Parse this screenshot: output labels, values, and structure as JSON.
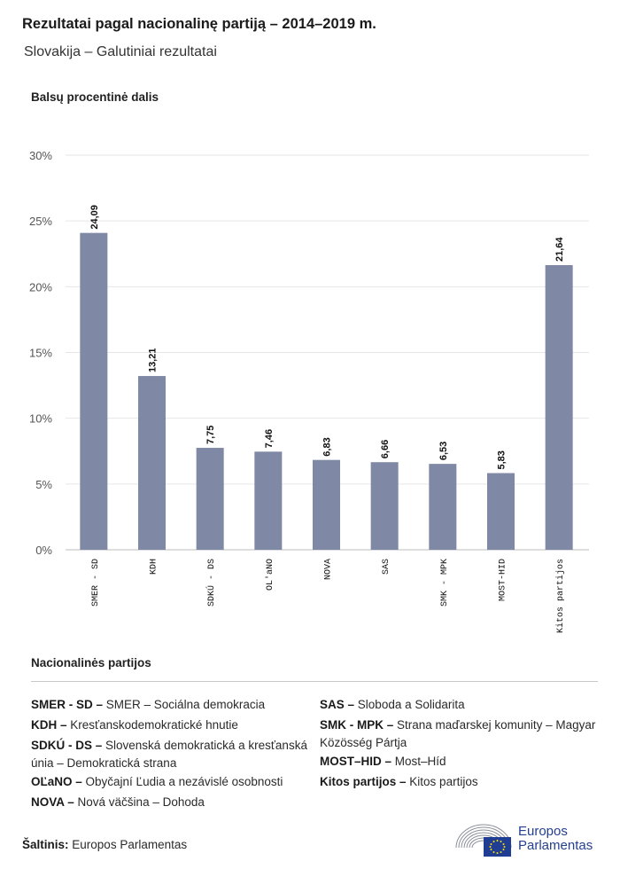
{
  "title": "Rezultatai pagal nacionalinę partiją – 2014–2019 m.",
  "subtitle": "Slovakija – Galutiniai rezultatai",
  "chart_data": {
    "type": "bar",
    "ylabel": "Balsų procentinė dalis",
    "ylim": [
      0,
      30
    ],
    "yticks": [
      "0%",
      "5%",
      "10%",
      "15%",
      "20%",
      "25%",
      "30%"
    ],
    "ytick_values": [
      0,
      5,
      10,
      15,
      20,
      25,
      30
    ],
    "categories": [
      "SMER - SD",
      "KDH",
      "SDKÚ - DS",
      "OL'aNO",
      "NOVA",
      "SAS",
      "SMK - MPK",
      "MOST-HID",
      "Kitos partijos"
    ],
    "values": [
      24.09,
      13.21,
      7.75,
      7.46,
      6.83,
      6.66,
      6.53,
      5.83,
      21.64
    ],
    "value_labels": [
      "24,09",
      "13,21",
      "7,75",
      "7,46",
      "6,83",
      "6,66",
      "6,53",
      "5,83",
      "21,64"
    ],
    "bar_color": "#7f88a5",
    "grid": true
  },
  "legend": {
    "title": "Nacionalinės partijos",
    "items": [
      {
        "abbr": "SMER - SD –",
        "name": "SMER – Sociálna demokracia"
      },
      {
        "abbr": "KDH –",
        "name": "Kresťanskodemokratické hnutie"
      },
      {
        "abbr": "SDKÚ - DS –",
        "name": "Slovenská demokratická a kresťanská únia – Demokratická strana"
      },
      {
        "abbr": "OĽaNO –",
        "name": "Obyčajní Ľudia a nezávislé osobnosti"
      },
      {
        "abbr": "NOVA –",
        "name": "Nová väčšina – Dohoda"
      },
      {
        "abbr": "SAS –",
        "name": "Sloboda a Solidarita"
      },
      {
        "abbr": "SMK - MPK –",
        "name": "Strana maďarskej komunity – Magyar Közösség Pártja"
      },
      {
        "abbr": "MOST–HID –",
        "name": "Most–Híd"
      },
      {
        "abbr": "Kitos partijos –",
        "name": "Kitos partijos"
      }
    ]
  },
  "source": {
    "label": "Šaltinis:",
    "value": "Europos Parlamentas"
  },
  "logo": {
    "line1": "Europos",
    "line2": "Parlamentas"
  }
}
